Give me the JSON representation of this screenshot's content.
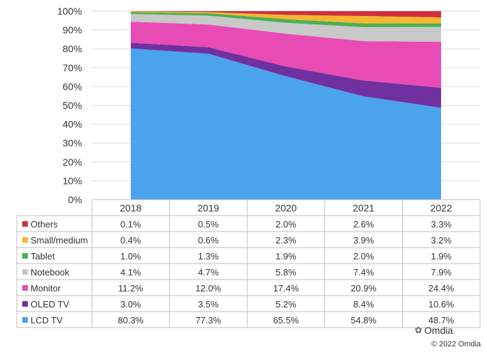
{
  "chart_data": {
    "type": "area",
    "stacked": true,
    "percent": true,
    "categories": [
      "2018",
      "2019",
      "2020",
      "2021",
      "2022"
    ],
    "ylim": [
      0,
      100
    ],
    "yticks": [
      "0%",
      "10%",
      "20%",
      "30%",
      "40%",
      "50%",
      "60%",
      "70%",
      "80%",
      "90%",
      "100%"
    ],
    "grid": true,
    "legend": "table-below",
    "series": [
      {
        "name": "LCD TV",
        "color": "#4aa3ec",
        "values": [
          80.3,
          77.3,
          65.5,
          54.8,
          48.7
        ],
        "labels": [
          "80.3%",
          "77.3%",
          "65.5%",
          "54.8%",
          "48.7%"
        ]
      },
      {
        "name": "OLED TV",
        "color": "#7030a0",
        "values": [
          3.0,
          3.5,
          5.2,
          8.4,
          10.6
        ],
        "labels": [
          "3.0%",
          "3.5%",
          "5.2%",
          "8.4%",
          "10.6%"
        ]
      },
      {
        "name": "Monitor",
        "color": "#e84bb4",
        "values": [
          11.2,
          12.0,
          17.4,
          20.9,
          24.4
        ],
        "labels": [
          "11.2%",
          "12.0%",
          "17.4%",
          "20.9%",
          "24.4%"
        ]
      },
      {
        "name": "Notebook",
        "color": "#c8c8c8",
        "values": [
          4.1,
          4.7,
          5.8,
          7.4,
          7.9
        ],
        "labels": [
          "4.1%",
          "4.7%",
          "5.8%",
          "7.4%",
          "7.9%"
        ]
      },
      {
        "name": "Tablet",
        "color": "#4caf50",
        "values": [
          1.0,
          1.3,
          1.9,
          2.0,
          1.9
        ],
        "labels": [
          "1.0%",
          "1.3%",
          "1.9%",
          "2.0%",
          "1.9%"
        ]
      },
      {
        "name": "Small/medium",
        "color": "#f5b731",
        "values": [
          0.4,
          0.6,
          2.3,
          3.9,
          3.2
        ],
        "labels": [
          "0.4%",
          "0.6%",
          "2.3%",
          "3.9%",
          "3.2%"
        ]
      },
      {
        "name": "Others",
        "color": "#d0303e",
        "values": [
          0.1,
          0.5,
          2.0,
          2.6,
          3.3
        ],
        "labels": [
          "0.1%",
          "0.5%",
          "2.0%",
          "2.6%",
          "3.3%"
        ]
      }
    ]
  },
  "footer": {
    "brand": "Omdia",
    "copyright": "© 2022 Omdia"
  },
  "icons": {
    "brand_icon": "wechat-icon"
  }
}
